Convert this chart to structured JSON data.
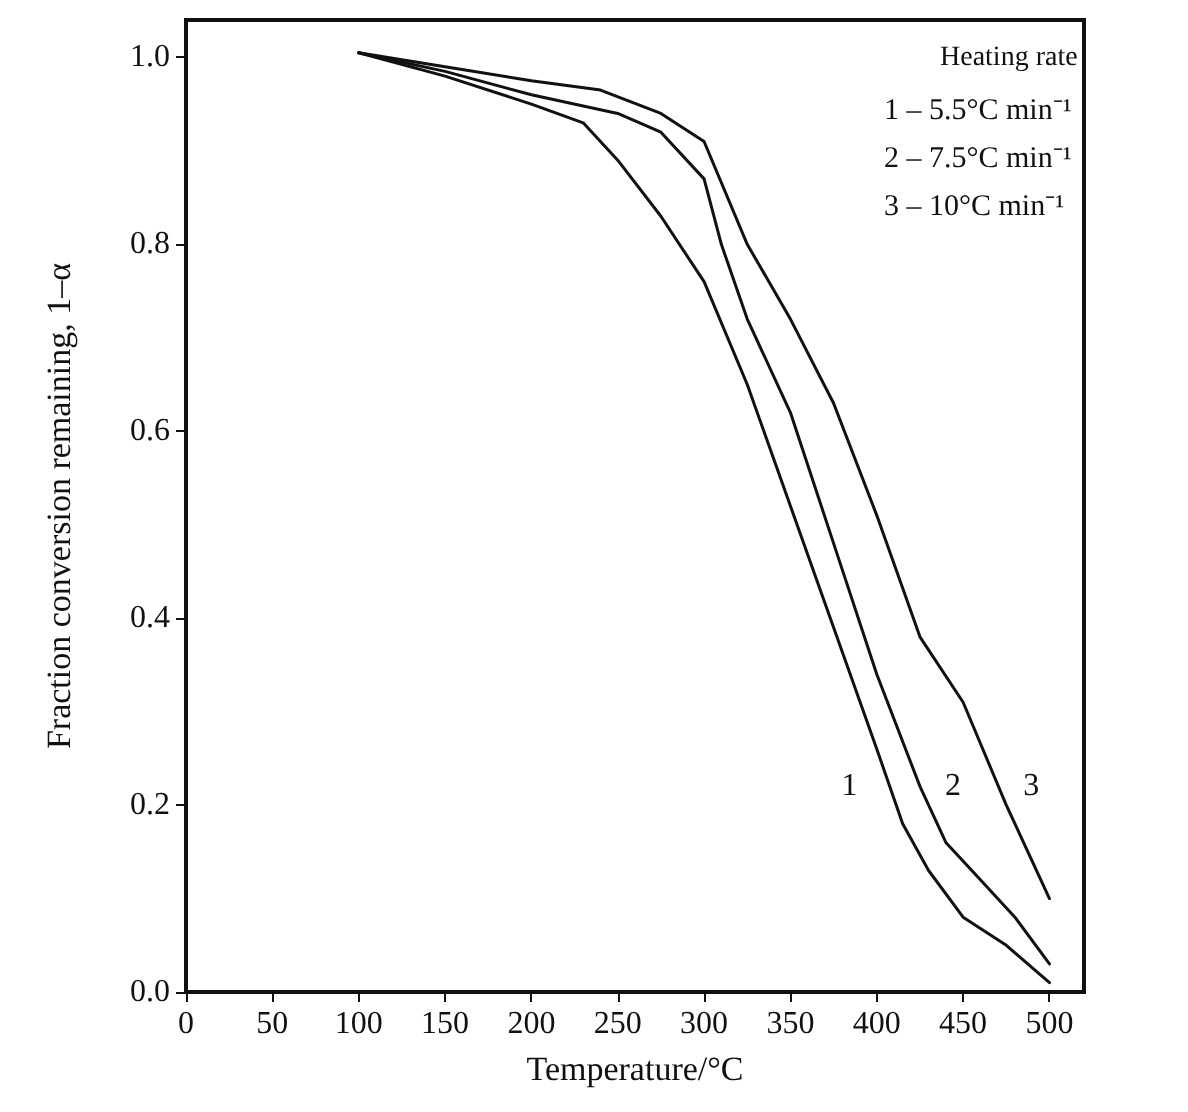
{
  "chart_data": {
    "type": "line",
    "xlabel": "Temperature/°C",
    "ylabel": "Fraction conversion remaining, 1–α",
    "xlim": [
      0,
      520
    ],
    "xticks": [
      0,
      50,
      100,
      150,
      200,
      250,
      300,
      350,
      400,
      450,
      500
    ],
    "ylim": [
      0,
      1.04
    ],
    "yticks": [
      {
        "value": 0,
        "label": "0.0"
      },
      {
        "value": 0.2,
        "label": "0.2"
      },
      {
        "value": 0.4,
        "label": "0.4"
      },
      {
        "value": 0.6,
        "label": "0.6"
      },
      {
        "value": 0.8,
        "label": "0.8"
      },
      {
        "value": 1,
        "label": "1.0"
      }
    ],
    "grid": false,
    "marker": "none",
    "line_style": "solid",
    "series": [
      {
        "name": "1",
        "color": "#111111",
        "x": [
          100,
          150,
          200,
          230,
          250,
          275,
          300,
          325,
          350,
          375,
          400,
          415,
          430,
          450,
          475,
          500
        ],
        "values": [
          1.005,
          0.98,
          0.95,
          0.93,
          0.89,
          0.83,
          0.76,
          0.65,
          0.52,
          0.39,
          0.26,
          0.18,
          0.13,
          0.08,
          0.05,
          0.01
        ]
      },
      {
        "name": "2",
        "color": "#111111",
        "x": [
          100,
          150,
          200,
          250,
          275,
          300,
          310,
          325,
          350,
          375,
          400,
          425,
          440,
          460,
          480,
          500
        ],
        "values": [
          1.005,
          0.985,
          0.96,
          0.94,
          0.92,
          0.87,
          0.8,
          0.72,
          0.62,
          0.48,
          0.34,
          0.22,
          0.16,
          0.12,
          0.08,
          0.03
        ]
      },
      {
        "name": "3",
        "color": "#111111",
        "x": [
          100,
          150,
          200,
          240,
          275,
          300,
          325,
          350,
          375,
          400,
          425,
          450,
          475,
          500
        ],
        "values": [
          1.005,
          0.99,
          0.975,
          0.965,
          0.94,
          0.91,
          0.8,
          0.72,
          0.63,
          0.51,
          0.38,
          0.31,
          0.2,
          0.1
        ]
      }
    ],
    "annotations": [
      "Heating rate",
      "1 – 5.5°C min⁻¹",
      "2 – 7.5°C min⁻¹",
      "3 – 10°C min⁻¹"
    ]
  }
}
